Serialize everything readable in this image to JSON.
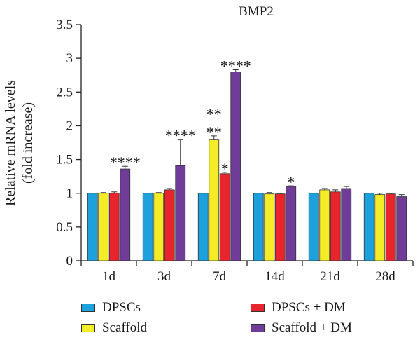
{
  "chart_data": {
    "type": "bar",
    "title": "BMP2",
    "ylabel_line1": "Relative mRNA levels",
    "ylabel_line2": "(fold increase)",
    "ylim": [
      0,
      3.5
    ],
    "yticks": [
      "0",
      "0.5",
      "1",
      "1.5",
      "2",
      "2.5",
      "3",
      "3.5"
    ],
    "categories": [
      "1d",
      "3d",
      "7d",
      "14d",
      "21d",
      "28d"
    ],
    "series": [
      {
        "name": "DPSCs",
        "color": "#1da1dc",
        "values": [
          1.0,
          1.0,
          1.0,
          1.0,
          1.0,
          1.0
        ],
        "errors": [
          0,
          0,
          0,
          0,
          0,
          0
        ],
        "sig": [
          "",
          "",
          "",
          "",
          "",
          ""
        ]
      },
      {
        "name": "Scaffold",
        "color": "#f4ec27",
        "values": [
          1.0,
          1.0,
          1.8,
          0.99,
          1.05,
          0.98
        ],
        "errors": [
          0.01,
          0.01,
          0.05,
          0.02,
          0.02,
          0.02
        ],
        "sig": [
          "",
          "",
          "**\n**",
          "",
          "",
          ""
        ]
      },
      {
        "name": "DPSCs + DM",
        "color": "#e8252d",
        "values": [
          1.0,
          1.05,
          1.29,
          0.99,
          1.02,
          0.99
        ],
        "errors": [
          0.02,
          0.02,
          0.02,
          0.01,
          0.03,
          0.01
        ],
        "sig": [
          "",
          "",
          "*",
          "",
          "",
          ""
        ]
      },
      {
        "name": "Scaffold + DM",
        "color": "#6f3d98",
        "values": [
          1.36,
          1.41,
          2.8,
          1.1,
          1.07,
          0.95
        ],
        "errors": [
          0.04,
          0.39,
          0.03,
          0.01,
          0.03,
          0.03
        ],
        "sig": [
          "****",
          "****",
          "****",
          "*",
          "",
          ""
        ]
      }
    ],
    "legend": {
      "position": "bottom"
    },
    "grid": false
  }
}
